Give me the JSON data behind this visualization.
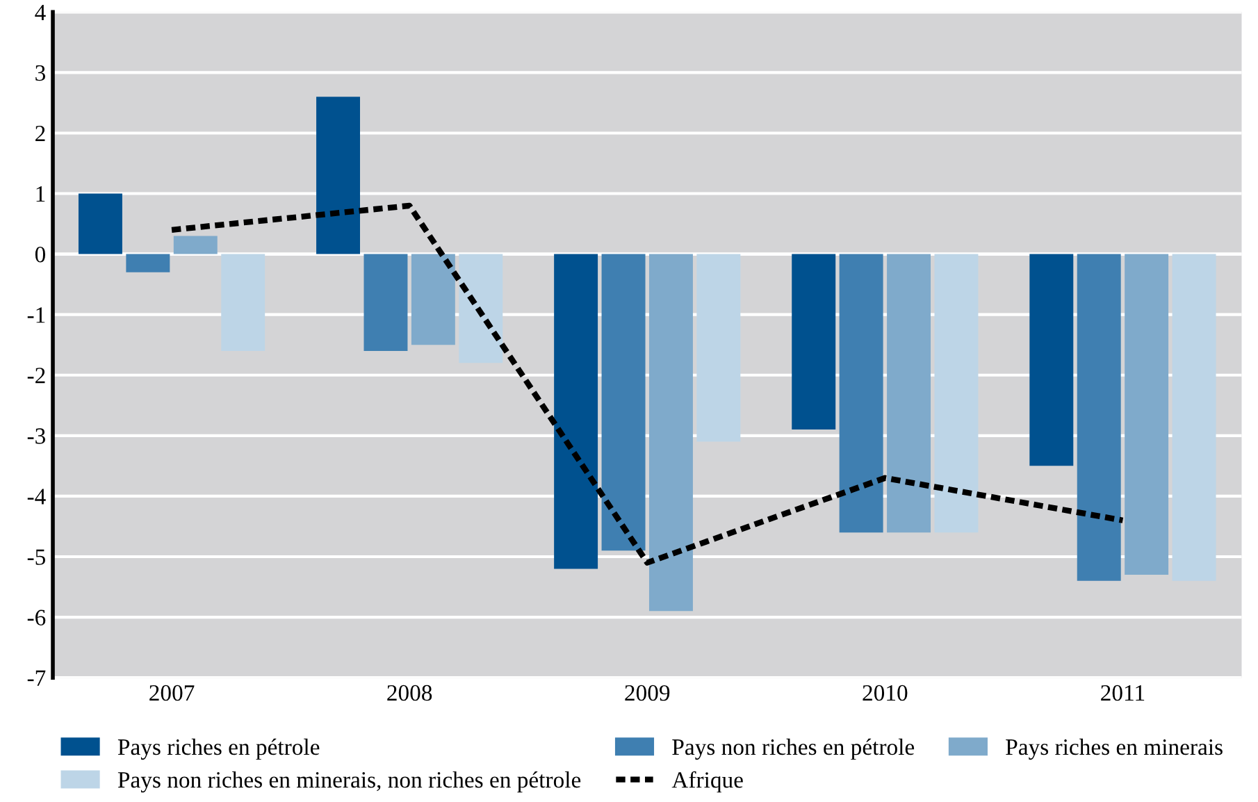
{
  "chart_data": {
    "type": "bar",
    "categories": [
      "2007",
      "2008",
      "2009",
      "2010",
      "2011"
    ],
    "series": [
      {
        "name": "Pays riches en pétrole",
        "color": "#00518f",
        "values": [
          1.0,
          2.6,
          -5.2,
          -2.9,
          -3.5
        ]
      },
      {
        "name": "Pays non riches en pétrole",
        "color": "#3f7fb1",
        "values": [
          -0.3,
          -1.6,
          -4.9,
          -4.6,
          -5.4
        ]
      },
      {
        "name": "Pays riches en minerais",
        "color": "#7faacb",
        "values": [
          0.3,
          -1.5,
          -5.9,
          -4.6,
          -5.3
        ]
      },
      {
        "name": "Pays non riches en minerais, non riches en pétrole",
        "color": "#bdd5e7",
        "values": [
          -1.6,
          -1.8,
          -3.1,
          -4.6,
          -5.4
        ]
      },
      {
        "name": "Afrique",
        "type": "line",
        "color": "#000000",
        "line_style": "dashed",
        "values": [
          0.4,
          0.8,
          -5.1,
          -3.7,
          -4.4
        ]
      }
    ],
    "ylim": [
      -7,
      4
    ],
    "yticks": [
      -7,
      -6,
      -5,
      -4,
      -3,
      -2,
      -1,
      0,
      1,
      2,
      3,
      4
    ],
    "grid": "y",
    "legend": "bottom"
  }
}
